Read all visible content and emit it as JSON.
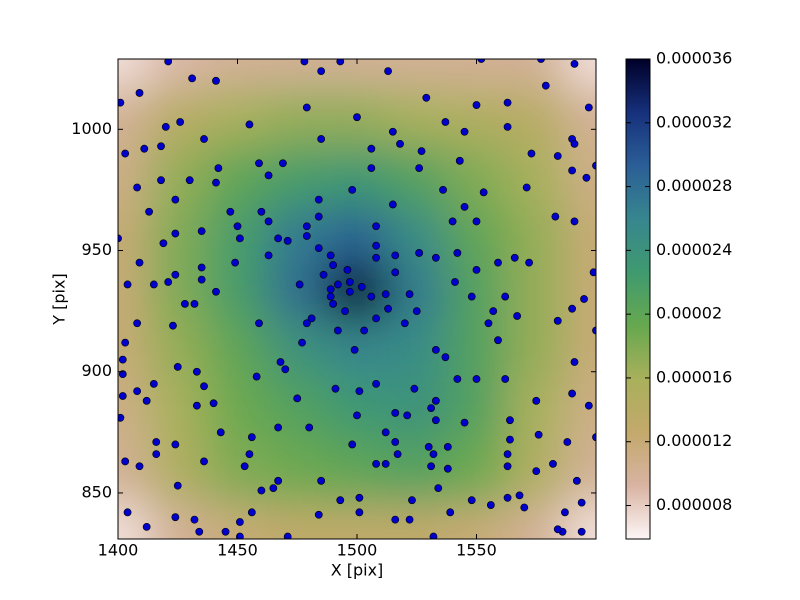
{
  "chart_data": {
    "type": "heatmap-scatter",
    "xlabel": "X [pix]",
    "ylabel": "Y [pix]",
    "xlim": [
      1400,
      1600
    ],
    "ylim": [
      831,
      1029
    ],
    "xticks": [
      1400,
      1450,
      1500,
      1550
    ],
    "yticks": [
      850,
      900,
      950,
      1000
    ],
    "grid_x": [
      1400,
      1425,
      1450,
      1475,
      1500,
      1525,
      1550,
      1575,
      1600
    ],
    "grid_y": [
      1029,
      1005,
      980,
      955,
      933,
      910,
      885,
      860,
      831
    ],
    "z": [
      [
        7e-06,
        9e-06,
        1e-05,
        1e-05,
        1e-05,
        1e-05,
        1e-05,
        1e-05,
        7e-06
      ],
      [
        1e-05,
        1.4e-05,
        1.6e-05,
        1.7e-05,
        1.7e-05,
        1.6e-05,
        1.5e-05,
        1.4e-05,
        1e-05
      ],
      [
        1.1e-05,
        1.7e-05,
        2e-05,
        2.2e-05,
        2.3e-05,
        2.1e-05,
        1.8e-05,
        1.6e-05,
        1.1e-05
      ],
      [
        1.2e-05,
        1.8e-05,
        2.2e-05,
        2.7e-05,
        2.9e-05,
        2.5e-05,
        2e-05,
        1.7e-05,
        1.2e-05
      ],
      [
        1.2e-05,
        1.8e-05,
        2.2e-05,
        2.8e-05,
        3.6e-05,
        2.7e-05,
        2.1e-05,
        1.7e-05,
        1.2e-05
      ],
      [
        1.2e-05,
        1.7e-05,
        2e-05,
        2.4e-05,
        2.6e-05,
        2.5e-05,
        2.1e-05,
        1.7e-05,
        1.2e-05
      ],
      [
        1.1e-05,
        1.6e-05,
        1.9e-05,
        2.1e-05,
        2.3e-05,
        2.4e-05,
        2.1e-05,
        1.6e-05,
        1.1e-05
      ],
      [
        1e-05,
        1.5e-05,
        1.8e-05,
        1.9e-05,
        2e-05,
        2.1e-05,
        1.9e-05,
        1.5e-05,
        1e-05
      ],
      [
        7e-06,
        1e-05,
        1.2e-05,
        1.3e-05,
        1.3e-05,
        1.3e-05,
        1.2e-05,
        1e-05,
        7e-06
      ]
    ],
    "clim": [
      5.9e-06,
      3.6e-05
    ],
    "cticks": [
      8e-06,
      1.2e-05,
      1.6e-05,
      2e-05,
      2.4e-05,
      2.8e-05,
      3.2e-05,
      3.6e-05
    ],
    "colormap": [
      "#fdf6f6",
      "#d8b3a2",
      "#c3a96c",
      "#a9b05b",
      "#66a84f",
      "#3f9a6f",
      "#37868f",
      "#2b5e96",
      "#16307c",
      "#000028"
    ],
    "point_color": "#0000cc",
    "x": [
      1401,
      1421,
      1409,
      1431,
      1441,
      1478,
      1485,
      1493,
      1513,
      1479,
      1500,
      1529,
      1550,
      1537,
      1552,
      1577,
      1579,
      1591,
      1597,
      1563,
      1420,
      1426,
      1436,
      1455,
      1485,
      1515,
      1518,
      1527,
      1506,
      1545,
      1563,
      1573,
      1584,
      1590,
      1591,
      1403,
      1411,
      1418,
      1408,
      1418,
      1430,
      1442,
      1441,
      1459,
      1469,
      1463,
      1526,
      1543,
      1536,
      1553,
      1571,
      1590,
      1596,
      1600,
      1413,
      1424,
      1447,
      1450,
      1460,
      1463,
      1484,
      1484,
      1498,
      1506,
      1515,
      1508,
      1540,
      1545,
      1550,
      1583,
      1591,
      1400,
      1419,
      1424,
      1435,
      1451,
      1467,
      1471,
      1479,
      1479,
      1484,
      1463,
      1449,
      1435,
      1409,
      1424,
      1435,
      1404,
      1415,
      1421,
      1516,
      1526,
      1533,
      1542,
      1550,
      1559,
      1566,
      1572,
      1599,
      1489,
      1490,
      1496,
      1497,
      1508,
      1508,
      1516,
      1486,
      1489,
      1492,
      1497,
      1502,
      1489,
      1476,
      1441,
      1428,
      1432,
      1506,
      1512,
      1522,
      1513,
      1508,
      1495,
      1490,
      1481,
      1479,
      1503,
      1492,
      1520,
      1525,
      1541,
      1548,
      1557,
      1555,
      1562,
      1567,
      1584,
      1590,
      1595,
      1600,
      1408,
      1423,
      1459,
      1477,
      1403,
      1402,
      1402,
      1468,
      1470,
      1425,
      1433,
      1499,
      1533,
      1537,
      1559,
      1542,
      1550,
      1562,
      1591,
      1408,
      1412,
      1415,
      1436,
      1458,
      1475,
      1491,
      1501,
      1524,
      1533,
      1531,
      1508,
      1402,
      1401,
      1433,
      1440,
      1500,
      1516,
      1521,
      1533,
      1575,
      1590,
      1597,
      1564,
      1443,
      1456,
      1467,
      1480,
      1498,
      1512,
      1516,
      1530,
      1538,
      1545,
      1564,
      1576,
      1588,
      1600,
      1416,
      1424,
      1416,
      1403,
      1409,
      1436,
      1453,
      1455,
      1467,
      1465,
      1508,
      1512,
      1517,
      1532,
      1531,
      1538,
      1563,
      1563,
      1575,
      1582,
      1592,
      1425,
      1460,
      1485,
      1534,
      1404,
      1412,
      1424,
      1432,
      1434,
      1445,
      1451,
      1456,
      1451,
      1471,
      1484,
      1493,
      1501,
      1501,
      1516,
      1522,
      1523,
      1532,
      1539,
      1548,
      1556,
      1563,
      1570,
      1568,
      1587,
      1586,
      1594,
      1594,
      1584
    ],
    "y": [
      1011,
      1028,
      1015,
      1021,
      1020,
      1028,
      1024,
      1028,
      1024,
      1009,
      1005,
      1013,
      1010,
      1003,
      1029,
      1029,
      1018,
      1027,
      1009,
      1011,
      1001,
      1003,
      996,
      1002,
      996,
      999,
      994,
      991,
      992,
      999,
      1001,
      990,
      989,
      996,
      994,
      990,
      992,
      993,
      976,
      979,
      979,
      984,
      978,
      986,
      986,
      981,
      984,
      987,
      975,
      974,
      976,
      983,
      980,
      985,
      966,
      971,
      966,
      960,
      966,
      962,
      971,
      964,
      975,
      984,
      969,
      960,
      962,
      968,
      962,
      964,
      962,
      955,
      953,
      957,
      958,
      955,
      955,
      954,
      956,
      960,
      951,
      948,
      945,
      943,
      945,
      940,
      938,
      936,
      936,
      937,
      948,
      949,
      947,
      949,
      942,
      945,
      947,
      945,
      941,
      948,
      944,
      942,
      937,
      952,
      947,
      941,
      940,
      934,
      936,
      933,
      935,
      931,
      936,
      933,
      928,
      928,
      931,
      932,
      932,
      926,
      922,
      925,
      928,
      922,
      920,
      917,
      917,
      920,
      925,
      937,
      931,
      925,
      920,
      931,
      923,
      921,
      926,
      930,
      917,
      920,
      919,
      920,
      912,
      912,
      905,
      899,
      904,
      901,
      902,
      900,
      909,
      909,
      906,
      913,
      897,
      897,
      897,
      904,
      892,
      888,
      895,
      894,
      898,
      889,
      893,
      892,
      893,
      888,
      885,
      895,
      890,
      881,
      886,
      887,
      882,
      883,
      882,
      880,
      888,
      891,
      886,
      880,
      875,
      873,
      877,
      877,
      870,
      875,
      871,
      869,
      869,
      879,
      872,
      874,
      871,
      873,
      871,
      870,
      866,
      863,
      861,
      863,
      861,
      866,
      855,
      852,
      862,
      862,
      866,
      866,
      861,
      860,
      866,
      861,
      859,
      862,
      855,
      853,
      851,
      855,
      852,
      842,
      836,
      840,
      839,
      834,
      834,
      838,
      842,
      832,
      832,
      841,
      847,
      848,
      842,
      839,
      839,
      847,
      832,
      842,
      847,
      845,
      848,
      844,
      849,
      842,
      834,
      846,
      834,
      835
    ]
  }
}
